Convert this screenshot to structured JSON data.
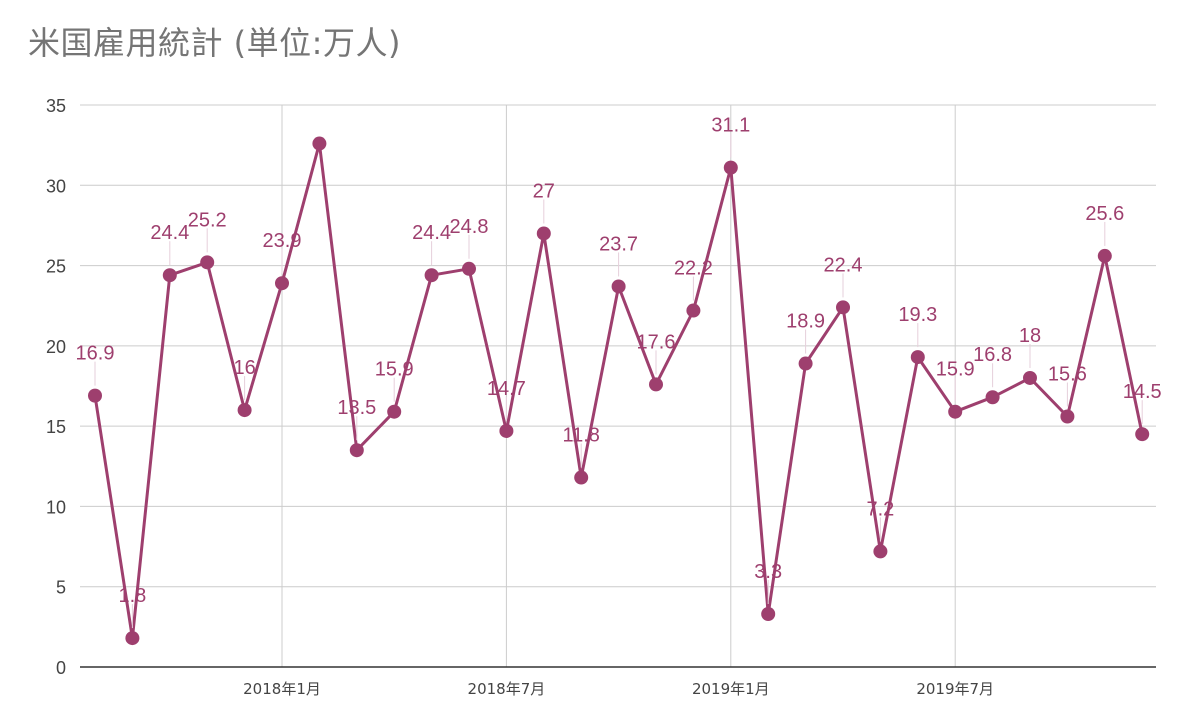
{
  "chart_data": {
    "type": "line",
    "title": "米国雇用統計 (単位:万人)",
    "ylim": [
      0,
      35
    ],
    "yticks": [
      "0",
      "5",
      "10",
      "15",
      "20",
      "25",
      "30",
      "35"
    ],
    "ytick_values": [
      0,
      5,
      10,
      15,
      20,
      25,
      30,
      35
    ],
    "xticks": [
      {
        "label": "2018年1月",
        "index": 5
      },
      {
        "label": "2018年7月",
        "index": 11
      },
      {
        "label": "2019年1月",
        "index": 17
      },
      {
        "label": "2019年7月",
        "index": 23
      }
    ],
    "grid": true,
    "series": [
      {
        "color": "#9e3f6e",
        "values": [
          16.9,
          1.8,
          24.4,
          25.2,
          16,
          23.9,
          32.6,
          13.5,
          15.9,
          24.4,
          24.8,
          14.7,
          27,
          11.8,
          23.7,
          17.6,
          22.2,
          31.1,
          3.3,
          18.9,
          22.4,
          7.2,
          19.3,
          15.9,
          16.8,
          18,
          15.6,
          25.6,
          14.5
        ],
        "labels": [
          "16.9",
          "1.8",
          "24.4",
          "25.2",
          "16",
          "23.9",
          "",
          "13.5",
          "15.9",
          "24.4",
          "24.8",
          "14.7",
          "27",
          "11.8",
          "23.7",
          "17.6",
          "22.2",
          "31.1",
          "3.3",
          "18.9",
          "22.4",
          "7.2",
          "19.3",
          "15.9",
          "16.8",
          "18",
          "15.6",
          "25.6",
          "14.5"
        ]
      }
    ]
  }
}
